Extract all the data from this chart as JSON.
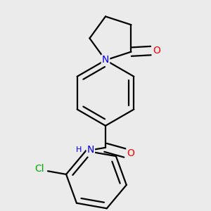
{
  "bg_color": "#ebebeb",
  "bond_color": "#000000",
  "bond_width": 1.6,
  "atom_colors": {
    "N": "#0000ee",
    "O": "#ff0000",
    "Cl": "#00aa00",
    "C": "#000000"
  },
  "font_size_atom": 10
}
